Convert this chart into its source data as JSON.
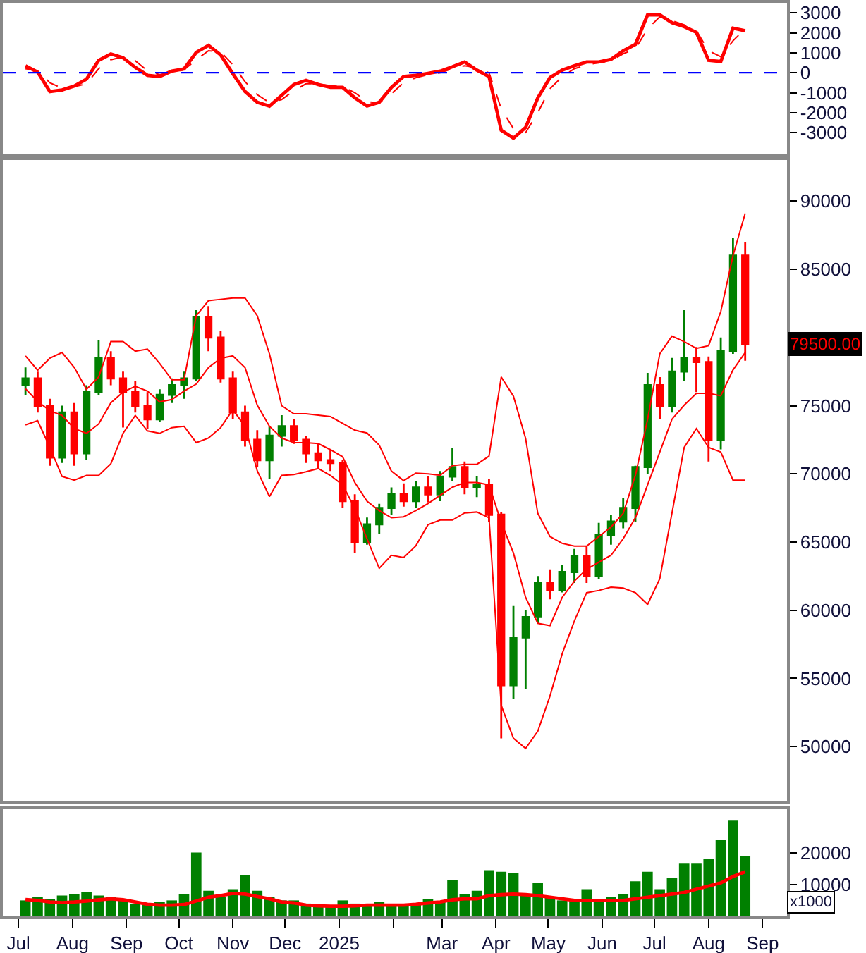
{
  "chart_data": [
    {
      "type": "line",
      "x": [
        "2024-07-05",
        "2024-07-12",
        "2024-07-19",
        "2024-07-26",
        "2024-08-02",
        "2024-08-09",
        "2024-08-16",
        "2024-08-23",
        "2024-08-30",
        "2024-09-06",
        "2024-09-13",
        "2024-09-20",
        "2024-09-27",
        "2024-10-04",
        "2024-10-11",
        "2024-10-18",
        "2024-10-25",
        "2024-11-01",
        "2024-11-08",
        "2024-11-15",
        "2024-11-22",
        "2024-11-29",
        "2024-12-06",
        "2024-12-13",
        "2024-12-20",
        "2024-12-27",
        "2025-01-03",
        "2025-01-10",
        "2025-01-17",
        "2025-01-24",
        "2025-01-31",
        "2025-02-07",
        "2025-02-14",
        "2025-02-21",
        "2025-02-28",
        "2025-03-07",
        "2025-03-14",
        "2025-03-21",
        "2025-03-28",
        "2025-04-04",
        "2025-04-11",
        "2025-04-18",
        "2025-04-25",
        "2025-05-02",
        "2025-05-09",
        "2025-05-16",
        "2025-05-23",
        "2025-05-30",
        "2025-06-06",
        "2025-06-13",
        "2025-06-20",
        "2025-06-27",
        "2025-07-04",
        "2025-07-11",
        "2025-07-18",
        "2025-07-25",
        "2025-08-01",
        "2025-08-08",
        "2025-08-15",
        "2025-08-22"
      ],
      "series": [
        {
          "color": "#ff0000",
          "values": [
            350,
            30,
            -940,
            -860,
            -670,
            -320,
            620,
            940,
            750,
            270,
            -130,
            -190,
            80,
            190,
            1020,
            1370,
            890,
            -50,
            -940,
            -1480,
            -1670,
            -1130,
            -590,
            -380,
            -590,
            -730,
            -730,
            -1260,
            -1670,
            -1480,
            -730,
            -190,
            -130,
            -30,
            80,
            300,
            540,
            130,
            -190,
            -2880,
            -3280,
            -2740,
            -1260,
            -240,
            130,
            350,
            540,
            540,
            670,
            1100,
            1420,
            2900,
            2900,
            2500,
            2310,
            2020,
            620,
            560,
            2230,
            2100
          ]
        },
        {
          "color": "#ff0000",
          "line_style": "dashed",
          "values": [
            200,
            100,
            -500,
            -780,
            -700,
            -550,
            200,
            650,
            800,
            600,
            100,
            -100,
            0,
            150,
            650,
            1100,
            1050,
            400,
            -450,
            -1100,
            -1500,
            -1350,
            -900,
            -550,
            -550,
            -650,
            -700,
            -1000,
            -1450,
            -1500,
            -1050,
            -500,
            -250,
            -100,
            0,
            200,
            350,
            250,
            0,
            -1800,
            -2800,
            -3000,
            -2000,
            -800,
            -200,
            200,
            400,
            500,
            600,
            950,
            1200,
            2200,
            2800,
            2600,
            2400,
            2100,
            1100,
            800,
            1600,
            2200
          ]
        }
      ],
      "xlim": [
        "2024-06-22",
        "2025-09-15"
      ],
      "ylim": [
        -4100,
        3500
      ],
      "yticks": [
        -3000,
        -2000,
        -1000,
        0,
        1000,
        2000,
        3000
      ],
      "tick_labels": "y",
      "ref_lines": [
        {
          "axis": "y",
          "value": 0,
          "color": "#0000ff",
          "line_style": "dashed"
        }
      ]
    },
    {
      "type": "candlestick",
      "x": [
        "2024-07-05",
        "2024-07-12",
        "2024-07-19",
        "2024-07-26",
        "2024-08-02",
        "2024-08-09",
        "2024-08-16",
        "2024-08-23",
        "2024-08-30",
        "2024-09-06",
        "2024-09-13",
        "2024-09-20",
        "2024-09-27",
        "2024-10-04",
        "2024-10-11",
        "2024-10-18",
        "2024-10-25",
        "2024-11-01",
        "2024-11-08",
        "2024-11-15",
        "2024-11-22",
        "2024-11-29",
        "2024-12-06",
        "2024-12-13",
        "2024-12-20",
        "2024-12-27",
        "2025-01-03",
        "2025-01-10",
        "2025-01-17",
        "2025-01-24",
        "2025-01-31",
        "2025-02-07",
        "2025-02-14",
        "2025-02-21",
        "2025-02-28",
        "2025-03-07",
        "2025-03-14",
        "2025-03-21",
        "2025-03-28",
        "2025-04-04",
        "2025-04-11",
        "2025-04-18",
        "2025-04-25",
        "2025-05-02",
        "2025-05-09",
        "2025-05-16",
        "2025-05-23",
        "2025-05-30",
        "2025-06-06",
        "2025-06-13",
        "2025-06-20",
        "2025-06-27",
        "2025-07-04",
        "2025-07-11",
        "2025-07-18",
        "2025-07-25",
        "2025-08-01",
        "2025-08-08",
        "2025-08-15",
        "2025-08-22"
      ],
      "ohlc": [
        [
          76500,
          77800,
          75800,
          77000
        ],
        [
          77000,
          77500,
          74500,
          75000
        ],
        [
          75000,
          75500,
          70600,
          71200
        ],
        [
          71200,
          75000,
          70800,
          74500
        ],
        [
          74500,
          75200,
          70600,
          71500
        ],
        [
          71500,
          76500,
          71000,
          76000
        ],
        [
          76000,
          79800,
          75800,
          78500
        ],
        [
          78500,
          79000,
          76500,
          77000
        ],
        [
          77000,
          77500,
          73400,
          76000
        ],
        [
          76000,
          76800,
          74500,
          75000
        ],
        [
          75000,
          76000,
          73300,
          74000
        ],
        [
          74000,
          76200,
          73800,
          75800
        ],
        [
          75800,
          77000,
          75200,
          76500
        ],
        [
          76500,
          77500,
          75500,
          77000
        ],
        [
          77000,
          82000,
          76800,
          81500
        ],
        [
          81500,
          82300,
          79000,
          80000
        ],
        [
          80000,
          80500,
          76700,
          77000
        ],
        [
          77000,
          77500,
          74000,
          74500
        ],
        [
          74500,
          75000,
          72000,
          72500
        ],
        [
          72500,
          73200,
          70500,
          71000
        ],
        [
          71000,
          73500,
          69600,
          72800
        ],
        [
          72800,
          74300,
          72000,
          73500
        ],
        [
          73500,
          74000,
          72200,
          72500
        ],
        [
          72500,
          72800,
          70800,
          71500
        ],
        [
          71500,
          72200,
          70400,
          71000
        ],
        [
          71000,
          71800,
          70200,
          70800
        ],
        [
          70800,
          71000,
          67500,
          68000
        ],
        [
          68000,
          68500,
          64200,
          65000
        ],
        [
          65000,
          66800,
          64800,
          66300
        ],
        [
          66300,
          67800,
          65600,
          67500
        ],
        [
          67500,
          69000,
          67000,
          68500
        ],
        [
          68500,
          69300,
          67600,
          68000
        ],
        [
          68000,
          69500,
          67500,
          69000
        ],
        [
          69000,
          69800,
          67900,
          68500
        ],
        [
          68500,
          70200,
          68000,
          69800
        ],
        [
          69800,
          71900,
          69500,
          70500
        ],
        [
          70500,
          70900,
          68500,
          69000
        ],
        [
          69000,
          69800,
          68300,
          69200
        ],
        [
          69200,
          69600,
          66500,
          67000
        ],
        [
          67000,
          67200,
          50600,
          54500
        ],
        [
          54500,
          60300,
          53500,
          58000
        ],
        [
          58000,
          60000,
          54200,
          59500
        ],
        [
          59500,
          62500,
          59000,
          62000
        ],
        [
          62000,
          63000,
          60800,
          61500
        ],
        [
          61500,
          63300,
          61300,
          62800
        ],
        [
          62800,
          64500,
          62000,
          64000
        ],
        [
          64000,
          64700,
          62000,
          62500
        ],
        [
          62500,
          66400,
          62300,
          65500
        ],
        [
          65500,
          67000,
          64800,
          66500
        ],
        [
          66500,
          68200,
          66000,
          67500
        ],
        [
          67500,
          70600,
          66500,
          70500
        ],
        [
          70500,
          77400,
          70000,
          76500
        ],
        [
          76500,
          77100,
          74000,
          75000
        ],
        [
          75000,
          78500,
          74500,
          77500
        ],
        [
          77500,
          82000,
          76800,
          78500
        ],
        [
          78500,
          79300,
          76000,
          78200
        ],
        [
          78200,
          78600,
          70900,
          72500
        ],
        [
          72500,
          80000,
          71800,
          79000
        ],
        [
          79000,
          87300,
          78800,
          86000
        ],
        [
          86000,
          87000,
          78300,
          79500
        ]
      ],
      "colors": [
        "#008000",
        "#ff0000",
        "#ff0000",
        "#008000",
        "#ff0000",
        "#008000",
        "#008000",
        "#ff0000",
        "#ff0000",
        "#ff0000",
        "#ff0000",
        "#008000",
        "#008000",
        "#008000",
        "#008000",
        "#ff0000",
        "#ff0000",
        "#ff0000",
        "#ff0000",
        "#ff0000",
        "#008000",
        "#008000",
        "#ff0000",
        "#ff0000",
        "#ff0000",
        "#ff0000",
        "#ff0000",
        "#ff0000",
        "#008000",
        "#008000",
        "#008000",
        "#ff0000",
        "#008000",
        "#ff0000",
        "#008000",
        "#008000",
        "#ff0000",
        "#008000",
        "#ff0000",
        "#ff0000",
        "#008000",
        "#008000",
        "#008000",
        "#ff0000",
        "#008000",
        "#008000",
        "#ff0000",
        "#008000",
        "#008000",
        "#008000",
        "#008000",
        "#008000",
        "#ff0000",
        "#008000",
        "#008000",
        "#ff0000",
        "#ff0000",
        "#008000",
        "#008000",
        "#ff0000"
      ],
      "series": [
        {
          "type": "line",
          "color": "#ff0000",
          "values": [
            78650,
            77600,
            78480,
            78900,
            77800,
            76200,
            77100,
            79700,
            79700,
            79000,
            79150,
            78100,
            76900,
            76900,
            81600,
            82700,
            82800,
            82900,
            82900,
            81600,
            78800,
            75000,
            74400,
            74400,
            74300,
            74200,
            73700,
            73200,
            73000,
            72100,
            70200,
            69500,
            70050,
            70000,
            69900,
            70600,
            70700,
            70700,
            71300,
            77100,
            75700,
            72600,
            67100,
            65400,
            64900,
            64700,
            64700,
            65400,
            66100,
            67100,
            69900,
            74000,
            78800,
            80100,
            79700,
            79200,
            79400,
            81900,
            86000,
            89100
          ]
        },
        {
          "type": "line",
          "color": "#ff0000",
          "values": [
            76240,
            75310,
            74630,
            74280,
            73320,
            72970,
            73660,
            75210,
            76000,
            76420,
            76070,
            75280,
            75450,
            76070,
            76590,
            77790,
            78480,
            78650,
            77790,
            75040,
            73490,
            72630,
            72290,
            72290,
            72220,
            71770,
            71250,
            69360,
            67990,
            67300,
            66780,
            66850,
            67300,
            67820,
            68430,
            69020,
            69360,
            69360,
            69190,
            66440,
            64200,
            60940,
            59040,
            58870,
            60940,
            62140,
            63000,
            63520,
            64030,
            65240,
            66780,
            69190,
            71600,
            74010,
            75040,
            75900,
            75900,
            75730,
            77620,
            78900
          ]
        },
        {
          "type": "line",
          "color": "#ff0000",
          "values": [
            73590,
            73900,
            71940,
            69810,
            69540,
            69880,
            69880,
            70740,
            72970,
            74280,
            73150,
            72970,
            73390,
            73490,
            72290,
            72630,
            73390,
            74700,
            73490,
            70220,
            68330,
            69880,
            69950,
            70150,
            70390,
            69880,
            69190,
            67470,
            65240,
            63070,
            64030,
            63860,
            64720,
            66270,
            66610,
            66610,
            67130,
            67200,
            66780,
            53020,
            50610,
            49860,
            51130,
            53710,
            56810,
            59210,
            61280,
            61450,
            61690,
            61620,
            61280,
            60420,
            62310,
            67130,
            71940,
            73320,
            71940,
            71600,
            69540,
            69540
          ]
        }
      ],
      "xlim": [
        "2024-06-22",
        "2025-09-15"
      ],
      "ylim": [
        46000,
        93000
      ],
      "yticks": [
        50000,
        55000,
        60000,
        65000,
        70000,
        75000,
        85000,
        90000
      ],
      "tick_labels": "y",
      "annotations": [
        "79500.00"
      ]
    },
    {
      "type": "bar",
      "x": [
        "2024-07-05",
        "2024-07-12",
        "2024-07-19",
        "2024-07-26",
        "2024-08-02",
        "2024-08-09",
        "2024-08-16",
        "2024-08-23",
        "2024-08-30",
        "2024-09-06",
        "2024-09-13",
        "2024-09-20",
        "2024-09-27",
        "2024-10-04",
        "2024-10-11",
        "2024-10-18",
        "2024-10-25",
        "2024-11-01",
        "2024-11-08",
        "2024-11-15",
        "2024-11-22",
        "2024-11-29",
        "2024-12-06",
        "2024-12-13",
        "2024-12-20",
        "2024-12-27",
        "2025-01-03",
        "2025-01-10",
        "2025-01-17",
        "2025-01-24",
        "2025-01-31",
        "2025-02-07",
        "2025-02-14",
        "2025-02-21",
        "2025-02-28",
        "2025-03-07",
        "2025-03-14",
        "2025-03-21",
        "2025-03-28",
        "2025-04-04",
        "2025-04-11",
        "2025-04-18",
        "2025-04-25",
        "2025-05-02",
        "2025-05-09",
        "2025-05-16",
        "2025-05-23",
        "2025-05-30",
        "2025-06-06",
        "2025-06-13",
        "2025-06-20",
        "2025-06-27",
        "2025-07-04",
        "2025-07-11",
        "2025-07-18",
        "2025-07-25",
        "2025-08-01",
        "2025-08-08",
        "2025-08-15",
        "2025-08-22"
      ],
      "series": [
        {
          "type": "bar",
          "color": "#008000",
          "values": [
            5000,
            6000,
            5500,
            6500,
            7000,
            7500,
            6500,
            6000,
            5000,
            4000,
            4000,
            4500,
            5000,
            7000,
            20000,
            8000,
            6000,
            8500,
            13000,
            8000,
            6000,
            5000,
            5000,
            4000,
            3500,
            3000,
            5000,
            4000,
            3500,
            4500,
            3500,
            3500,
            4000,
            5500,
            4500,
            11500,
            7000,
            8000,
            14500,
            14000,
            13500,
            7000,
            10500,
            6000,
            5000,
            5500,
            8500,
            5000,
            6000,
            7000,
            11000,
            14000,
            8500,
            12000,
            16500,
            16500,
            18000,
            24000,
            30000,
            19000
          ]
        },
        {
          "type": "line",
          "color": "#ff0000",
          "values": [
            5300,
            5000,
            4500,
            4300,
            4500,
            4800,
            5200,
            5500,
            5200,
            4500,
            3800,
            3500,
            3500,
            3700,
            4800,
            6000,
            6500,
            7200,
            7000,
            6200,
            5500,
            4500,
            4200,
            3500,
            3300,
            3200,
            3200,
            3300,
            3500,
            3500,
            3500,
            3500,
            3800,
            4200,
            4500,
            5200,
            5500,
            5500,
            6500,
            6800,
            7000,
            6800,
            6500,
            6000,
            5500,
            5000,
            5000,
            5000,
            5000,
            5000,
            5500,
            6000,
            6500,
            7000,
            7500,
            8500,
            9500,
            10500,
            12500,
            14000
          ]
        }
      ],
      "xlim": [
        "2024-06-22",
        "2025-09-15"
      ],
      "xticks": [
        {
          "value": "2024-07-01",
          "label": "Jul"
        },
        {
          "value": "2024-08-01",
          "label": "Aug"
        },
        {
          "value": "2024-09-01",
          "label": "Sep"
        },
        {
          "value": "2024-10-01",
          "label": "Oct"
        },
        {
          "value": "2024-11-01",
          "label": "Nov"
        },
        {
          "value": "2024-12-01",
          "label": "Dec"
        },
        {
          "value": "2025-01-01",
          "label": "2025"
        },
        {
          "value": "2025-02-01",
          "label": null
        },
        {
          "value": "2025-03-01",
          "label": "Mar"
        },
        {
          "value": "2025-04-01",
          "label": "Apr"
        },
        {
          "value": "2025-05-01",
          "label": "May"
        },
        {
          "value": "2025-06-01",
          "label": "Jun"
        },
        {
          "value": "2025-07-01",
          "label": "Jul"
        },
        {
          "value": "2025-08-01",
          "label": "Aug"
        },
        {
          "value": "2025-09-01",
          "label": "Sep"
        }
      ],
      "ylim": [
        0,
        33500
      ],
      "yticks": [
        10000,
        20000
      ],
      "annotations": [
        "x1000"
      ]
    }
  ]
}
